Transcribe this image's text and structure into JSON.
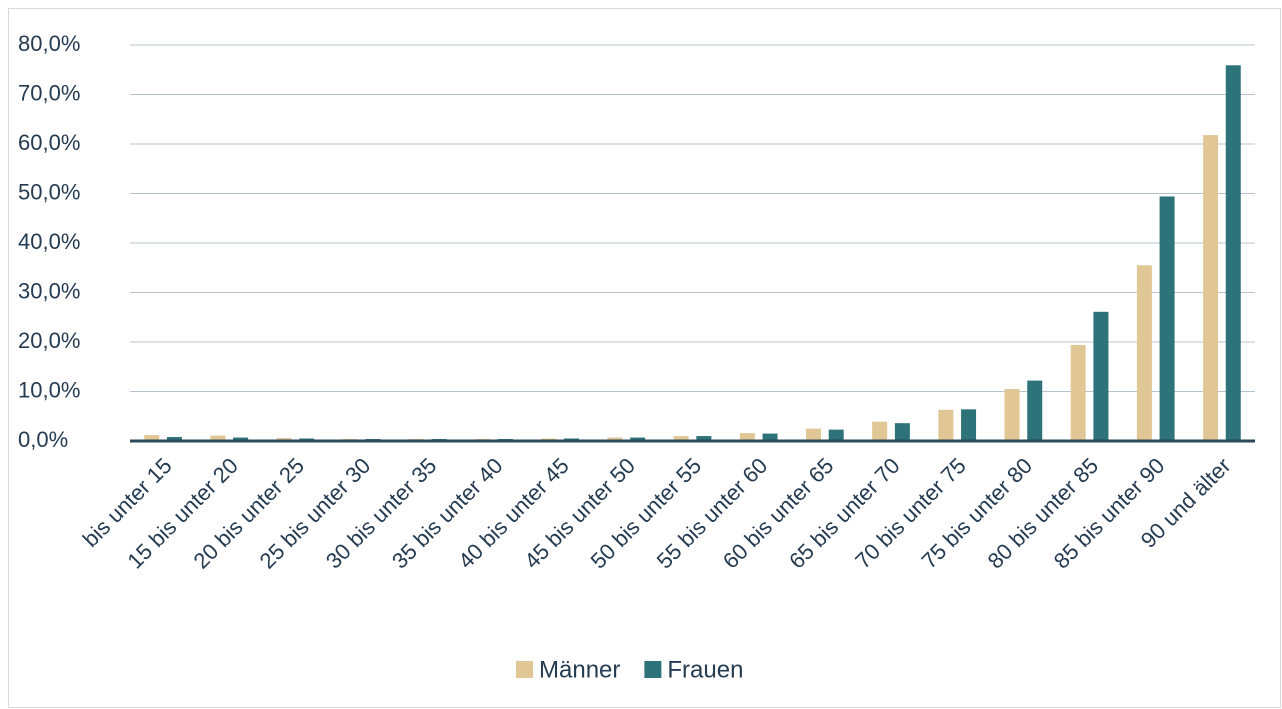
{
  "chart_data": {
    "type": "bar",
    "categories": [
      "bis unter 15",
      "15 bis unter 20",
      "20 bis unter 25",
      "25 bis unter 30",
      "30 bis unter 35",
      "35 bis unter 40",
      "40 bis unter 45",
      "45 bis unter 50",
      "50 bis unter 55",
      "55 bis unter 60",
      "60 bis unter 65",
      "65 bis unter 70",
      "70 bis unter 75",
      "75 bis unter 80",
      "80 bis unter 85",
      "85 bis unter 90",
      "90 und älter"
    ],
    "series": [
      {
        "name": "Männer",
        "color": "#e2c796",
        "values": [
          1.2,
          1.1,
          0.6,
          0.4,
          0.4,
          0.4,
          0.5,
          0.7,
          1.0,
          1.6,
          2.5,
          3.9,
          6.3,
          10.5,
          19.4,
          35.5,
          61.8
        ]
      },
      {
        "name": "Frauen",
        "color": "#2e7379",
        "values": [
          0.8,
          0.7,
          0.5,
          0.4,
          0.4,
          0.4,
          0.5,
          0.7,
          1.0,
          1.5,
          2.3,
          3.6,
          6.4,
          12.2,
          26.1,
          49.4,
          75.9
        ]
      }
    ],
    "ylim": [
      0,
      80
    ],
    "yticks": [
      {
        "value": 0,
        "label": "0,0%"
      },
      {
        "value": 10,
        "label": "10,0%"
      },
      {
        "value": 20,
        "label": "20,0%"
      },
      {
        "value": 30,
        "label": "30,0%"
      },
      {
        "value": 40,
        "label": "40,0%"
      },
      {
        "value": 50,
        "label": "50,0%"
      },
      {
        "value": 60,
        "label": "60,0%"
      },
      {
        "value": 70,
        "label": "70,0%"
      },
      {
        "value": 80,
        "label": "80,0%"
      }
    ],
    "grid": true,
    "legend": "bottom"
  }
}
